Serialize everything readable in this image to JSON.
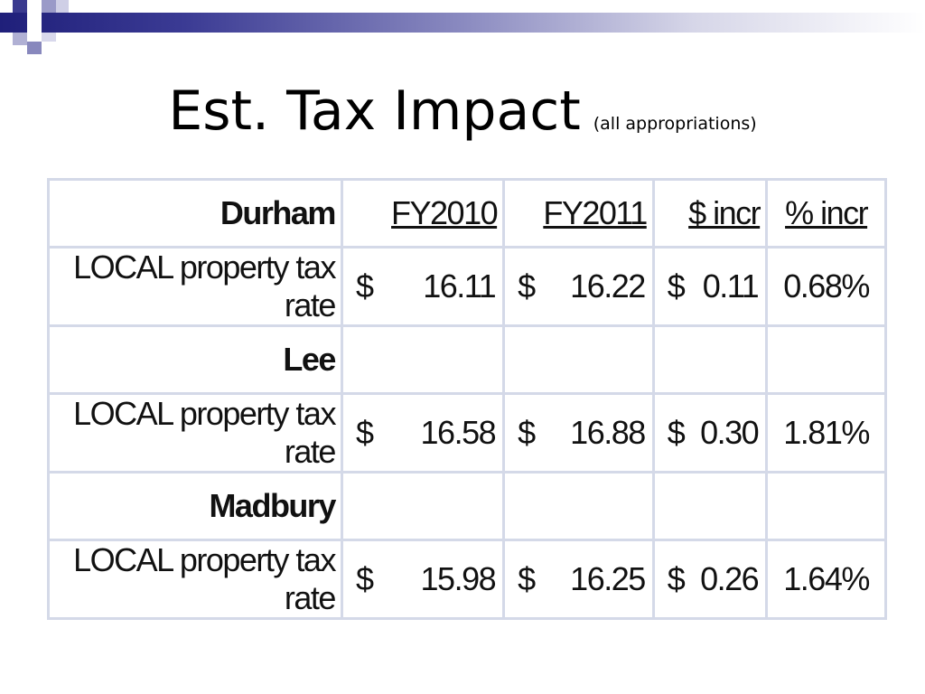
{
  "slide": {
    "title": "Est. Tax Impact",
    "subtitle": "(all appropriations)"
  },
  "table": {
    "headers": {
      "town": "Durham",
      "fy2010": "FY2010",
      "fy2011": "FY2011",
      "dollar_incr": "$ incr",
      "pct_incr": "% incr"
    },
    "rows": [
      {
        "label": "LOCAL property tax rate",
        "cur1": "$",
        "fy2010": "16.11",
        "cur2": "$",
        "fy2011": "16.22",
        "cur3": "$",
        "dollar_incr": "0.11",
        "pct_incr": "0.68%"
      },
      {
        "town": "Lee"
      },
      {
        "label": "LOCAL property tax rate",
        "cur1": "$",
        "fy2010": "16.58",
        "cur2": "$",
        "fy2011": "16.88",
        "cur3": "$",
        "dollar_incr": "0.30",
        "pct_incr": "1.81%"
      },
      {
        "town": "Madbury"
      },
      {
        "label": "LOCAL property tax rate",
        "cur1": "$",
        "fy2010": "15.98",
        "cur2": "$",
        "fy2011": "16.25",
        "cur3": "$",
        "dollar_incr": "0.26",
        "pct_incr": "1.64%"
      }
    ]
  },
  "colors": {
    "header_band_dark": "#1f1f7a",
    "table_border": "#d4d9e8",
    "text": "#111111"
  }
}
